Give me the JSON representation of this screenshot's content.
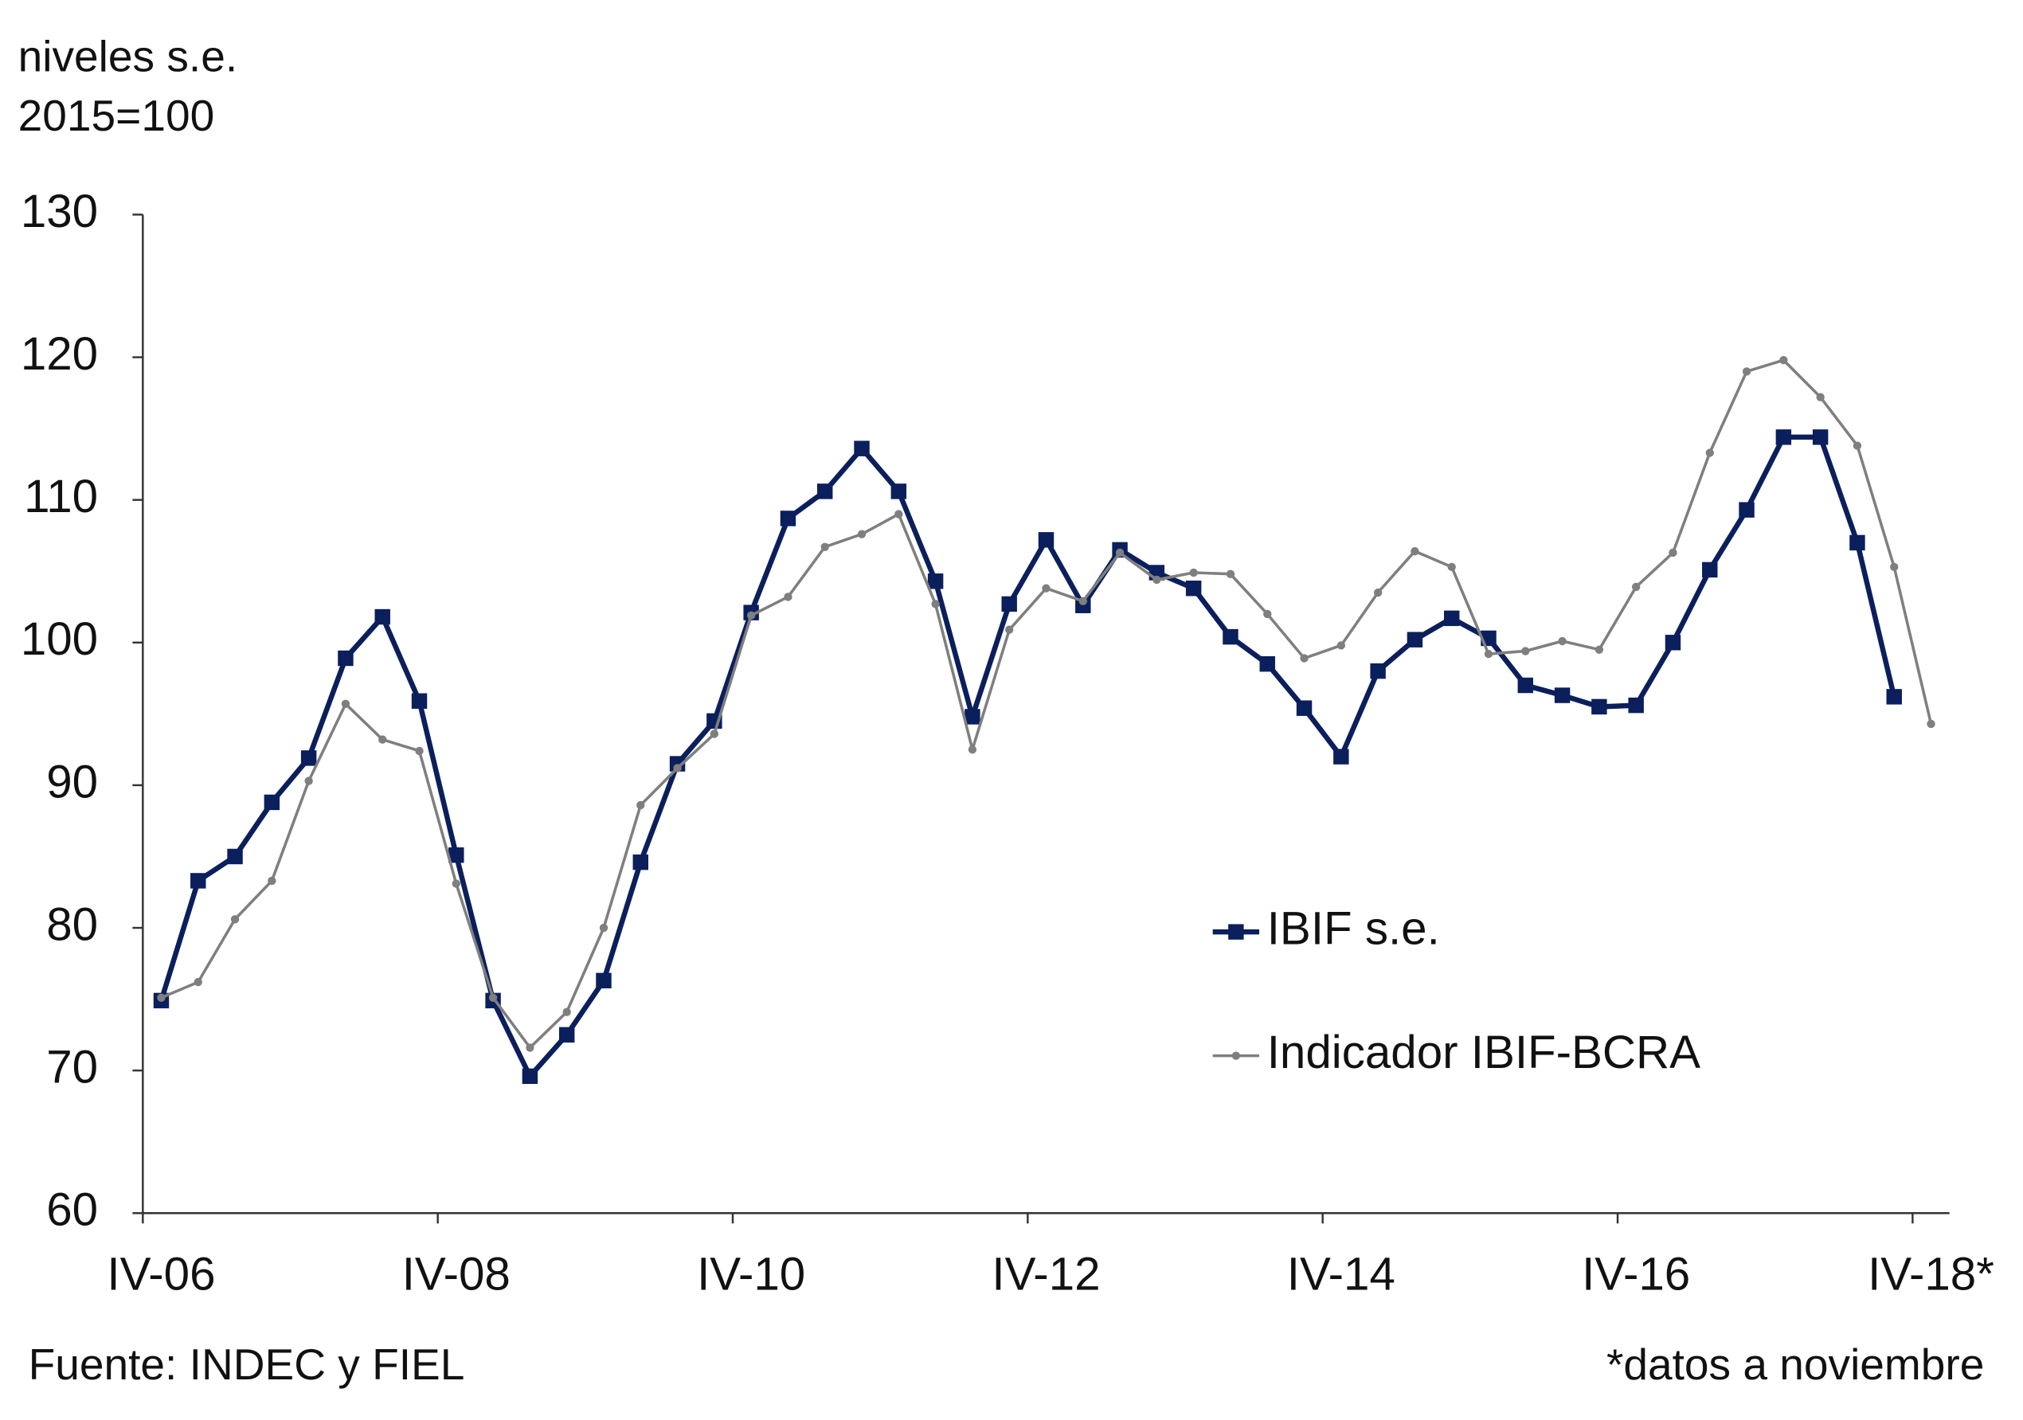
{
  "chart_data": {
    "type": "line",
    "y_label_lines": [
      "niveles s.e.",
      "2015=100"
    ],
    "source": "Fuente: INDEC y FIEL",
    "note": "*datos a noviembre",
    "categories": [
      "IV-06",
      null,
      null,
      null,
      null,
      null,
      null,
      null,
      "IV-08",
      null,
      null,
      null,
      null,
      null,
      null,
      null,
      "IV-10",
      null,
      null,
      null,
      null,
      null,
      null,
      null,
      "IV-12",
      null,
      null,
      null,
      null,
      null,
      null,
      null,
      "IV-14",
      null,
      null,
      null,
      null,
      null,
      null,
      null,
      "IV-16",
      null,
      null,
      null,
      null,
      null,
      null,
      null,
      "IV-18*"
    ],
    "series": [
      {
        "name": "IBIF s.e.",
        "color": "#0b1f5c",
        "marker": "square",
        "values": [
          74.9,
          83.3,
          85.0,
          88.8,
          91.9,
          98.9,
          101.8,
          95.9,
          85.1,
          74.9,
          69.6,
          72.5,
          76.3,
          84.6,
          91.5,
          94.5,
          102.1,
          108.7,
          110.6,
          113.6,
          110.6,
          104.3,
          94.8,
          102.7,
          107.2,
          102.6,
          106.5,
          104.9,
          103.8,
          100.4,
          98.5,
          95.4,
          92.0,
          98.0,
          100.2,
          101.7,
          100.3,
          97.0,
          96.3,
          95.5,
          95.6,
          100.0,
          105.1,
          109.3,
          114.4,
          114.4,
          107.0,
          96.2,
          null
        ]
      },
      {
        "name": "Indicador IBIF-BCRA",
        "color": "#7f7f7f",
        "marker": "circle",
        "values": [
          75.1,
          76.2,
          80.6,
          83.3,
          90.3,
          95.7,
          93.2,
          92.4,
          83.1,
          75.1,
          71.6,
          74.1,
          80.0,
          88.6,
          91.2,
          93.6,
          101.9,
          103.2,
          106.7,
          107.6,
          109.0,
          102.7,
          92.5,
          100.9,
          103.8,
          102.9,
          106.3,
          104.4,
          104.9,
          104.8,
          102.0,
          98.9,
          99.8,
          103.5,
          106.4,
          105.3,
          99.2,
          99.4,
          100.1,
          99.5,
          103.9,
          106.3,
          113.3,
          119.0,
          119.8,
          117.2,
          113.8,
          105.3,
          94.3
        ]
      }
    ],
    "ylim": [
      60,
      130
    ],
    "yticks": [
      60,
      70,
      80,
      90,
      100,
      110,
      120,
      130
    ],
    "grid": false,
    "legend_position": "center right"
  }
}
